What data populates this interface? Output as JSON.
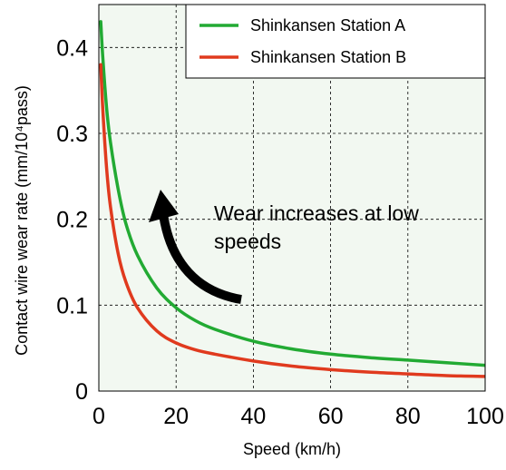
{
  "chart_data": {
    "type": "line",
    "title": "",
    "xlabel": "Speed (km/h)",
    "ylabel": "Contact wire wear rate (mm/10⁴pass)",
    "xlim": [
      0,
      100
    ],
    "ylim": [
      0,
      0.45
    ],
    "x_ticks": [
      0,
      20,
      40,
      60,
      80,
      100
    ],
    "x_tick_labels": [
      "0",
      "20",
      "40",
      "60",
      "80",
      "100"
    ],
    "y_ticks": [
      0,
      0.1,
      0.2,
      0.3,
      0.4
    ],
    "y_tick_labels": [
      "0",
      "0.1",
      "0.2",
      "0.3",
      "0.4"
    ],
    "grid": true,
    "legend_position": "top-right",
    "background_color": "#f2f8f1",
    "series": [
      {
        "name": "Shinkansen Station A",
        "color": "#22aa33",
        "x": [
          0.5,
          1,
          2,
          3,
          5,
          7,
          10,
          15,
          20,
          25,
          30,
          40,
          50,
          60,
          70,
          80,
          90,
          100
        ],
        "y": [
          0.43,
          0.39,
          0.33,
          0.29,
          0.235,
          0.195,
          0.158,
          0.12,
          0.097,
          0.082,
          0.072,
          0.058,
          0.049,
          0.043,
          0.039,
          0.036,
          0.033,
          0.03
        ]
      },
      {
        "name": "Shinkansen Station B",
        "color": "#e03a1e",
        "x": [
          0.5,
          1,
          2,
          3,
          5,
          7,
          10,
          15,
          20,
          25,
          30,
          40,
          50,
          60,
          70,
          80,
          90,
          100
        ],
        "y": [
          0.38,
          0.33,
          0.26,
          0.215,
          0.16,
          0.127,
          0.097,
          0.07,
          0.056,
          0.048,
          0.043,
          0.035,
          0.029,
          0.025,
          0.022,
          0.02,
          0.018,
          0.017
        ]
      }
    ],
    "annotations": [
      {
        "text_lines": [
          "Wear increases at low",
          "speeds"
        ],
        "arrow": "black-curved-arrow",
        "arrow_from": [
          37,
          0.105
        ],
        "arrow_to": [
          16,
          0.22
        ]
      }
    ]
  }
}
